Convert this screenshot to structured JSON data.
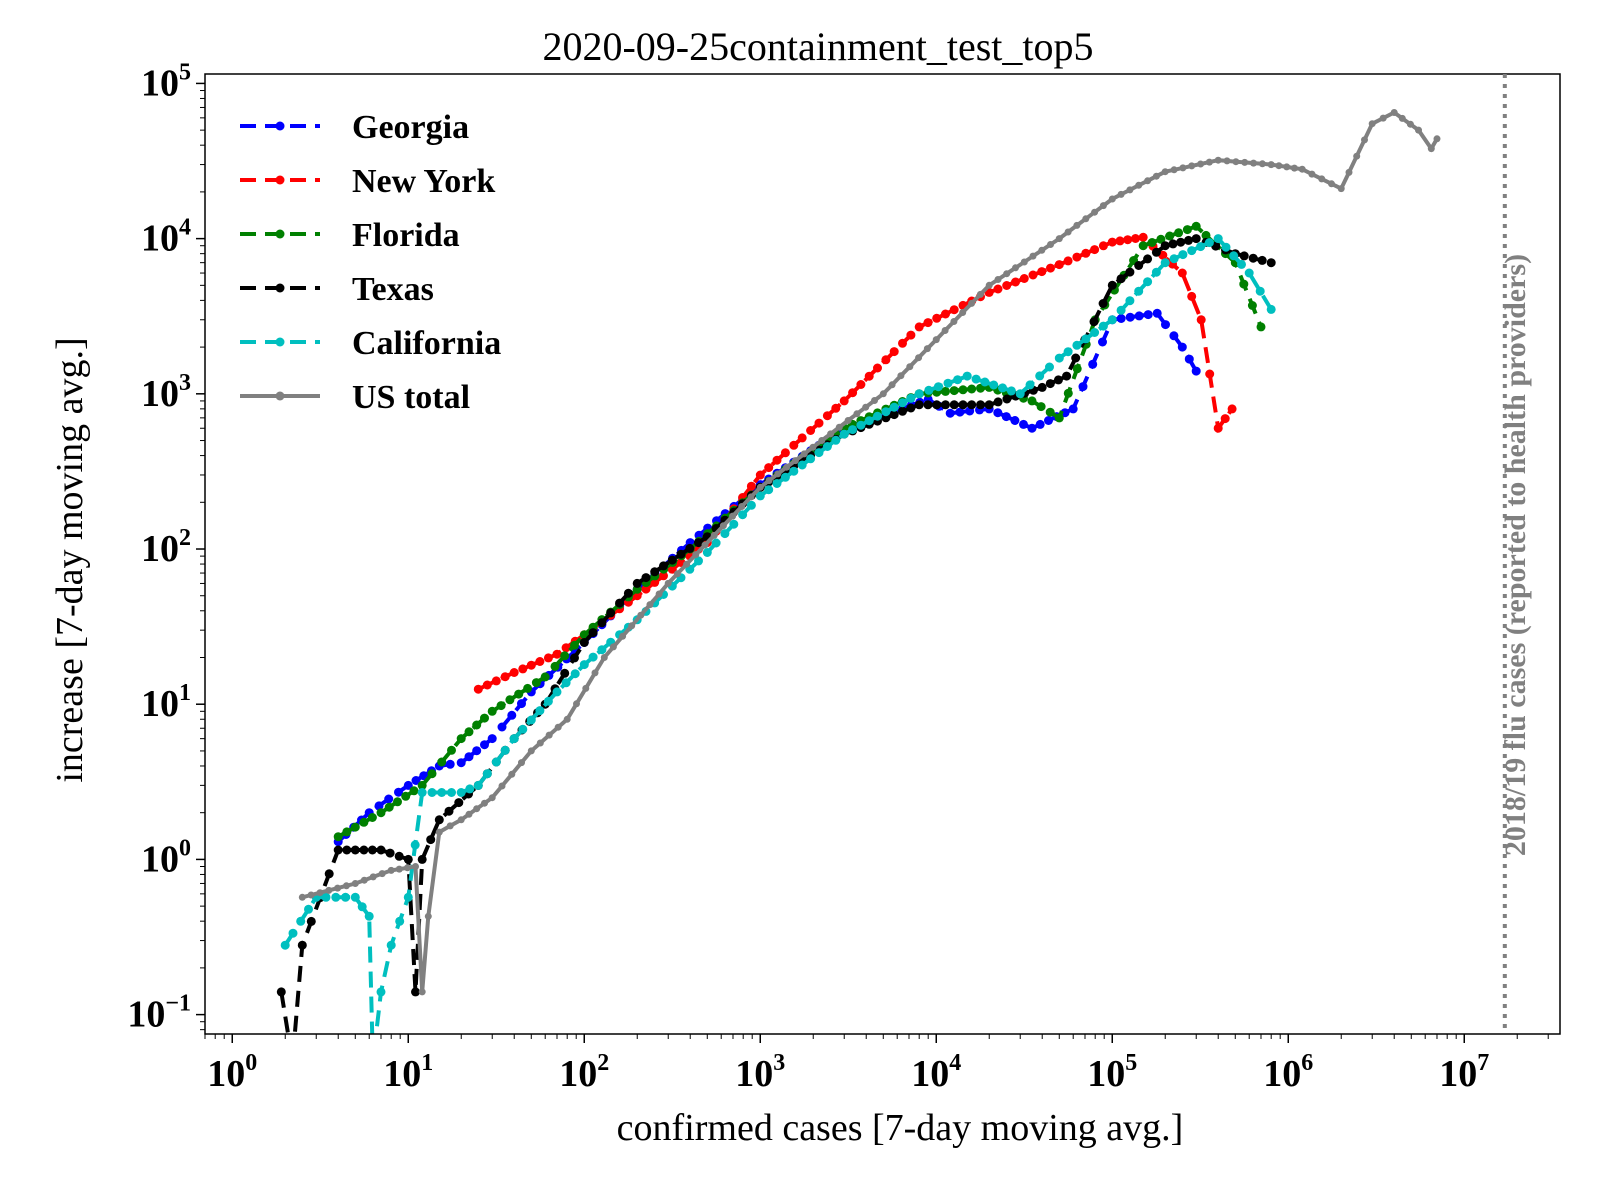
{
  "chart_data": {
    "type": "line",
    "title": "2020-09-25containment_test_top5",
    "xlabel": "confirmed cases [7-day moving avg.]",
    "ylabel": "increase [7-day moving avg.]",
    "xscale": "log",
    "yscale": "log",
    "xlim": [
      0.7,
      35000000
    ],
    "ylim": [
      0.075,
      115000
    ],
    "x_ticks": [
      {
        "base": "10",
        "exp": "0",
        "value": 1
      },
      {
        "base": "10",
        "exp": "1",
        "value": 10
      },
      {
        "base": "10",
        "exp": "2",
        "value": 100
      },
      {
        "base": "10",
        "exp": "3",
        "value": 1000
      },
      {
        "base": "10",
        "exp": "4",
        "value": 10000
      },
      {
        "base": "10",
        "exp": "5",
        "value": 100000
      },
      {
        "base": "10",
        "exp": "6",
        "value": 1000000
      },
      {
        "base": "10",
        "exp": "7",
        "value": 10000000
      }
    ],
    "y_ticks": [
      {
        "base": "10",
        "exp": "−1",
        "value": 0.1
      },
      {
        "base": "10",
        "exp": "0",
        "value": 1
      },
      {
        "base": "10",
        "exp": "1",
        "value": 10
      },
      {
        "base": "10",
        "exp": "2",
        "value": 100
      },
      {
        "base": "10",
        "exp": "3",
        "value": 1000
      },
      {
        "base": "10",
        "exp": "4",
        "value": 10000
      },
      {
        "base": "10",
        "exp": "5",
        "value": 100000
      }
    ],
    "legend_position": "top-left",
    "annotation": {
      "text": "2018/19 flu cases (reported to health providers)",
      "x": 17000000,
      "color": "#808080",
      "linestyle": "dotted"
    },
    "series": [
      {
        "name": "Georgia",
        "color": "#0000ff",
        "linestyle": "dashed",
        "points": [
          [
            4,
            1.3
          ],
          [
            6,
            2
          ],
          [
            10,
            3
          ],
          [
            15,
            4
          ],
          [
            20,
            4.2
          ],
          [
            30,
            6
          ],
          [
            50,
            12
          ],
          [
            100,
            25
          ],
          [
            200,
            55
          ],
          [
            400,
            110
          ],
          [
            1000,
            260
          ],
          [
            3000,
            600
          ],
          [
            9000,
            920
          ],
          [
            12000,
            750
          ],
          [
            20000,
            800
          ],
          [
            35000,
            600
          ],
          [
            60000,
            800
          ],
          [
            100000,
            3000
          ],
          [
            180000,
            3300
          ],
          [
            250000,
            2000
          ],
          [
            300000,
            1400
          ]
        ]
      },
      {
        "name": "New York",
        "color": "#ff0000",
        "linestyle": "dashed",
        "points": [
          [
            25,
            12.5
          ],
          [
            40,
            16
          ],
          [
            70,
            21
          ],
          [
            100,
            28
          ],
          [
            200,
            50
          ],
          [
            500,
            110
          ],
          [
            1000,
            300
          ],
          [
            3000,
            900
          ],
          [
            8000,
            2700
          ],
          [
            20000,
            4500
          ],
          [
            50000,
            6800
          ],
          [
            100000,
            9500
          ],
          [
            150000,
            10200
          ],
          [
            250000,
            6000
          ],
          [
            320000,
            3000
          ],
          [
            400000,
            600
          ],
          [
            480000,
            800
          ]
        ]
      },
      {
        "name": "Florida",
        "color": "#008000",
        "linestyle": "dashed",
        "points": [
          [
            4,
            1.4
          ],
          [
            7,
            2
          ],
          [
            12,
            3
          ],
          [
            20,
            6
          ],
          [
            30,
            9
          ],
          [
            60,
            15
          ],
          [
            100,
            28
          ],
          [
            200,
            55
          ],
          [
            400,
            100
          ],
          [
            1000,
            250
          ],
          [
            3000,
            600
          ],
          [
            8000,
            1000
          ],
          [
            20000,
            1100
          ],
          [
            35000,
            900
          ],
          [
            50000,
            700
          ],
          [
            80000,
            3000
          ],
          [
            150000,
            9000
          ],
          [
            300000,
            12000
          ],
          [
            500000,
            7000
          ],
          [
            700000,
            2700
          ]
        ]
      },
      {
        "name": "Texas",
        "color": "#000000",
        "linestyle": "dashed",
        "points": [
          [
            1.9,
            0.14
          ],
          [
            2.2,
            0.05
          ],
          [
            2.5,
            0.28
          ],
          [
            4,
            1.15
          ],
          [
            7,
            1.15
          ],
          [
            10,
            1
          ],
          [
            11,
            0.14
          ],
          [
            12,
            1
          ],
          [
            15,
            1.8
          ],
          [
            25,
            3
          ],
          [
            40,
            6
          ],
          [
            60,
            10
          ],
          [
            100,
            25
          ],
          [
            200,
            60
          ],
          [
            500,
            120
          ],
          [
            1000,
            250
          ],
          [
            3000,
            550
          ],
          [
            8000,
            850
          ],
          [
            20000,
            850
          ],
          [
            40000,
            1100
          ],
          [
            55000,
            1300
          ],
          [
            100000,
            5000
          ],
          [
            200000,
            9000
          ],
          [
            300000,
            10000
          ],
          [
            500000,
            8000
          ],
          [
            800000,
            7000
          ]
        ]
      },
      {
        "name": "California",
        "color": "#00bfbf",
        "linestyle": "dashed",
        "points": [
          [
            2,
            0.28
          ],
          [
            3,
            0.57
          ],
          [
            5,
            0.57
          ],
          [
            6,
            0.43
          ],
          [
            6.3,
            0.05
          ],
          [
            7,
            0.14
          ],
          [
            8,
            0.28
          ],
          [
            10,
            0.57
          ],
          [
            12,
            2.7
          ],
          [
            20,
            2.7
          ],
          [
            25,
            3
          ],
          [
            40,
            6
          ],
          [
            70,
            12
          ],
          [
            100,
            18
          ],
          [
            200,
            35
          ],
          [
            500,
            95
          ],
          [
            1000,
            220
          ],
          [
            3000,
            550
          ],
          [
            8000,
            1000
          ],
          [
            15000,
            1300
          ],
          [
            30000,
            1000
          ],
          [
            50000,
            1700
          ],
          [
            100000,
            3000
          ],
          [
            200000,
            7000
          ],
          [
            400000,
            10000
          ],
          [
            600000,
            6000
          ],
          [
            800000,
            3500
          ]
        ]
      },
      {
        "name": "US total",
        "color": "#808080",
        "linestyle": "solid",
        "points": [
          [
            2.5,
            0.57
          ],
          [
            5,
            0.7
          ],
          [
            8,
            0.85
          ],
          [
            11,
            0.9
          ],
          [
            12,
            0.14
          ],
          [
            13,
            0.43
          ],
          [
            15,
            1.5
          ],
          [
            20,
            1.8
          ],
          [
            30,
            2.5
          ],
          [
            50,
            5
          ],
          [
            80,
            8
          ],
          [
            130,
            20
          ],
          [
            300,
            60
          ],
          [
            1000,
            250
          ],
          [
            5000,
            1000
          ],
          [
            20000,
            5000
          ],
          [
            50000,
            10000
          ],
          [
            100000,
            18000
          ],
          [
            200000,
            27000
          ],
          [
            400000,
            32000
          ],
          [
            800000,
            30000
          ],
          [
            1200000,
            28000
          ],
          [
            2000000,
            21000
          ],
          [
            3000000,
            55000
          ],
          [
            4000000,
            65000
          ],
          [
            5500000,
            50000
          ],
          [
            6500000,
            38000
          ],
          [
            7000000,
            44000
          ]
        ]
      }
    ]
  }
}
